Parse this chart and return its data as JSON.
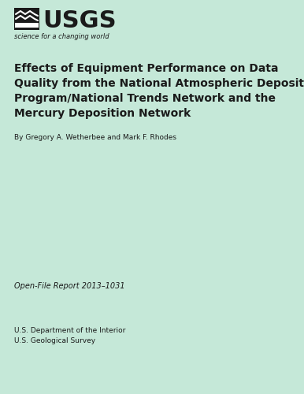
{
  "background_color": "#c5e8d8",
  "dark_text": "#1a1a1a",
  "title_line1": "Effects of Equipment Performance on Data",
  "title_line2": "Quality from the National Atmospheric Deposition",
  "title_line3": "Program/National Trends Network and the",
  "title_line4": "Mercury Deposition Network",
  "authors": "By Gregory A. Wetherbee and Mark F. Rhodes",
  "report_number": "Open-File Report 2013–1031",
  "dept1": "U.S. Department of the Interior",
  "dept2": "U.S. Geological Survey",
  "usgs_text": "USGS",
  "usgs_tagline": "science for a changing world"
}
